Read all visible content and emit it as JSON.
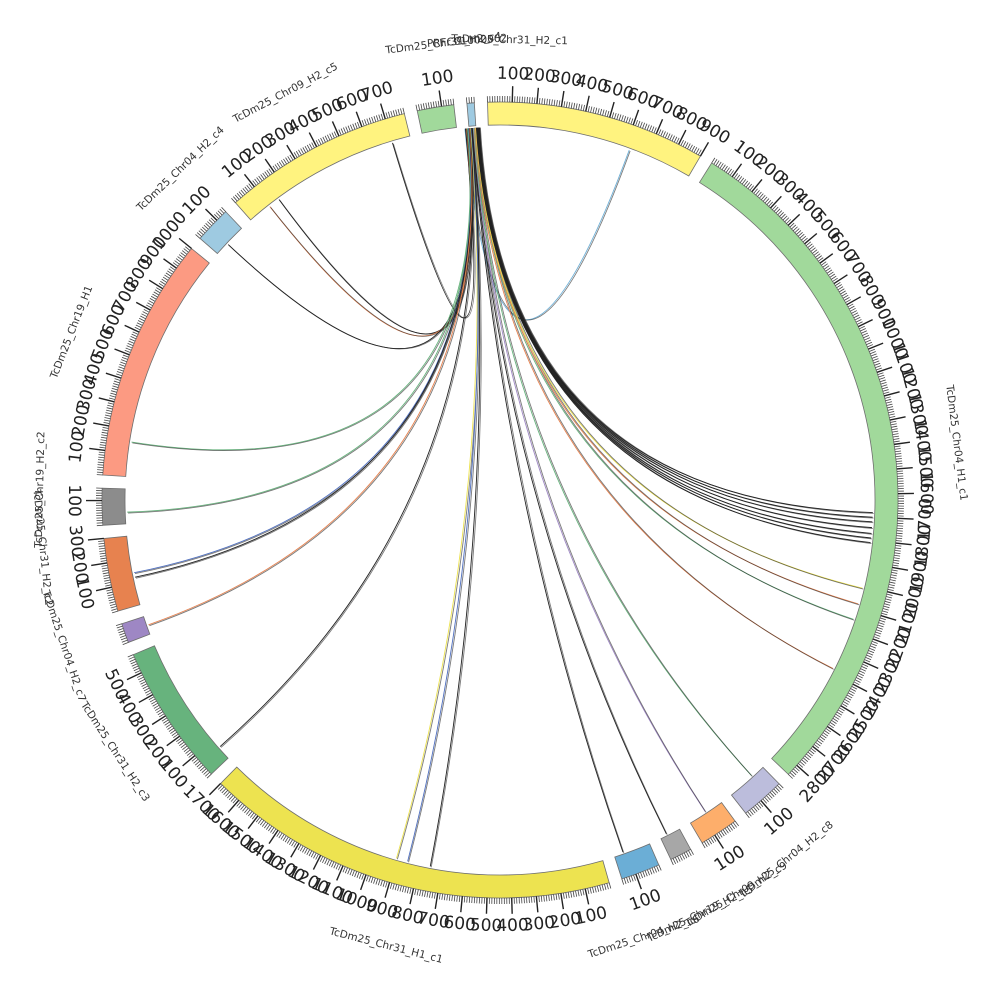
{
  "circos": {
    "tick_unit": 100,
    "link_anchor_segment": "PRFC01000002",
    "segments": [
      {
        "name": "TcDm25_Chr31_H2_c1",
        "length": 900,
        "color": "#fff37f",
        "label_side": "start"
      },
      {
        "name": "TcDm25_Chr04_H1_c1",
        "length": 2850,
        "color": "#a1d99b",
        "label_side": "mid"
      },
      {
        "name": "TcDm25_Chr04_H2_c8",
        "length": 180,
        "color": "#bcbddc",
        "label_side": "end"
      },
      {
        "name": "TcDm25_Chr09_H2_c9",
        "length": 160,
        "color": "#fdae6b",
        "label_side": "end"
      },
      {
        "name": "TcDm25_Chr19_H2_c5",
        "length": 90,
        "color": "#a7a7a7",
        "label_side": "end"
      },
      {
        "name": "TcDm25_Chr04_H2_c6",
        "length": 160,
        "color": "#6baed6",
        "label_side": "end"
      },
      {
        "name": "TcDm25_Chr31_H1_c1",
        "length": 1700,
        "color": "#ede350",
        "label_side": "mid"
      },
      {
        "name": "TcDm25_Chr31_H2_c3",
        "length": 580,
        "color": "#67b37d",
        "label_side": "mid"
      },
      {
        "name": "TcDm25_Chr04_H2_c7",
        "length": 80,
        "color": "#9e87c4",
        "label_side": "end"
      },
      {
        "name": "TcDm25_Chr31_H2_c2",
        "length": 300,
        "color": "#e7824f",
        "label_side": "end"
      },
      {
        "name": "TcDm25_Chr19_H2_c2",
        "length": 150,
        "color": "#8c8c8c",
        "label_side": "end"
      },
      {
        "name": "TcDm25_Chr19_H1",
        "length": 1000,
        "color": "#fc9a82",
        "label_side": "mid"
      },
      {
        "name": "TcDm25_Chr04_H2_c4",
        "length": 150,
        "color": "#9ecae1",
        "label_side": "end"
      },
      {
        "name": "TcDm25_Chr09_H2_c5",
        "length": 780,
        "color": "#fff37f",
        "label_side": "mid"
      },
      {
        "name": "TcDm25_Chr31_H2_c4",
        "length": 150,
        "color": "#a1d99b",
        "label_side": "end"
      },
      {
        "name": "PRFC01000002",
        "length": 30,
        "color": "#9ecae1",
        "label_side": "end"
      }
    ],
    "links": [
      {
        "target": "TcDm25_Chr31_H2_c1",
        "pos": 620,
        "color": "#6baed6"
      },
      {
        "target": "TcDm25_Chr09_H2_c5",
        "pos": 700,
        "color": "#222222"
      },
      {
        "target": "TcDm25_Chr09_H2_c5",
        "pos": 150,
        "color": "#222222"
      },
      {
        "target": "TcDm25_Chr09_H2_c5",
        "pos": 100,
        "color": "#e7824f"
      },
      {
        "target": "TcDm25_Chr04_H2_c4",
        "pos": 60,
        "color": "#222222"
      },
      {
        "target": "TcDm25_Chr19_H1",
        "pos": 150,
        "color": "#67b37d"
      },
      {
        "target": "TcDm25_Chr19_H2_c2",
        "pos": 50,
        "color": "#67b37d"
      },
      {
        "target": "TcDm25_Chr31_H2_c2",
        "pos": 140,
        "color": "#4f6fbf"
      },
      {
        "target": "TcDm25_Chr31_H2_c2",
        "pos": 120,
        "color": "#222222"
      },
      {
        "target": "TcDm25_Chr04_H2_c7",
        "pos": 40,
        "color": "#e7824f"
      },
      {
        "target": "TcDm25_Chr31_H2_c3",
        "pos": 60,
        "color": "#222222"
      },
      {
        "target": "TcDm25_Chr31_H1_c1",
        "pos": 900,
        "color": "#ede350"
      },
      {
        "target": "TcDm25_Chr31_H1_c1",
        "pos": 850,
        "color": "#4f6fbf"
      },
      {
        "target": "TcDm25_Chr31_H1_c1",
        "pos": 750,
        "color": "#222222"
      },
      {
        "target": "TcDm25_Chr04_H2_c6",
        "pos": 120,
        "color": "#222222"
      },
      {
        "target": "TcDm25_Chr19_H2_c5",
        "pos": 60,
        "color": "#222222"
      },
      {
        "target": "TcDm25_Chr09_H2_c9",
        "pos": 80,
        "color": "#9e87c4"
      },
      {
        "target": "TcDm25_Chr04_H2_c8",
        "pos": 60,
        "color": "#67b37d"
      },
      {
        "target": "TcDm25_Chr04_H1_c1",
        "pos": 2380,
        "color": "#e7824f"
      },
      {
        "target": "TcDm25_Chr04_H1_c1",
        "pos": 2150,
        "color": "#67b37d"
      },
      {
        "target": "TcDm25_Chr04_H1_c1",
        "pos": 2080,
        "color": "#e7824f"
      },
      {
        "target": "TcDm25_Chr04_H1_c1",
        "pos": 2010,
        "color": "#ede350"
      },
      {
        "target": "TcDm25_Chr04_H1_c1",
        "pos": 1810,
        "color": "#222222"
      },
      {
        "target": "TcDm25_Chr04_H1_c1",
        "pos": 1790,
        "color": "#222222"
      },
      {
        "target": "TcDm25_Chr04_H1_c1",
        "pos": 1770,
        "color": "#222222"
      },
      {
        "target": "TcDm25_Chr04_H1_c1",
        "pos": 1745,
        "color": "#222222"
      },
      {
        "target": "TcDm25_Chr04_H1_c1",
        "pos": 1720,
        "color": "#222222"
      },
      {
        "target": "TcDm25_Chr04_H1_c1",
        "pos": 1700,
        "color": "#222222"
      },
      {
        "target": "TcDm25_Chr04_H1_c1",
        "pos": 1680,
        "color": "#222222"
      }
    ]
  }
}
